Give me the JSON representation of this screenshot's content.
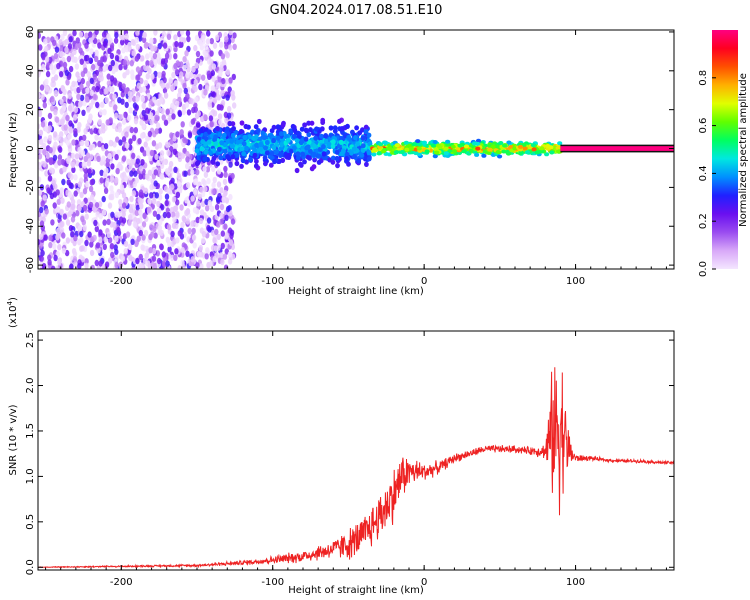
{
  "title": "GN04.2024.017.08.51.E10",
  "chart_data": [
    {
      "type": "heatmap",
      "xlabel": "Height of straight line (km)",
      "ylabel": "Frequency (Hz)",
      "xlim": [
        -255,
        165
      ],
      "ylim": [
        -62,
        61
      ],
      "x_ticks": [
        -200,
        -100,
        0,
        100
      ],
      "x_tick_labels": [
        "-200",
        "-100",
        "0",
        "100"
      ],
      "y_ticks": [
        -60,
        -40,
        -20,
        0,
        20,
        40,
        60
      ],
      "y_tick_labels": [
        "-60",
        "-40",
        "-20",
        "0",
        "20",
        "40",
        "60"
      ],
      "colorbar": {
        "label": "Normalized spectral amplitude",
        "range": [
          0,
          1
        ],
        "ticks": [
          0.0,
          0.2,
          0.4,
          0.6,
          0.8
        ],
        "tick_labels": [
          "0.0",
          "0.2",
          "0.4",
          "0.6",
          "0.8"
        ],
        "colormap": [
          "#f4e6ff",
          "#d8a8f8",
          "#9a4cf0",
          "#6a10f0",
          "#2020ff",
          "#0090ff",
          "#00e8e0",
          "#00ff60",
          "#60ff00",
          "#e0ff00",
          "#ffb000",
          "#ff5000",
          "#ff0020",
          "#ff0080"
        ]
      },
      "regions": [
        {
          "x": [
            -255,
            -125
          ],
          "freq": [
            -62,
            60
          ],
          "amplitude": [
            0.0,
            0.2
          ],
          "pattern": "noise"
        },
        {
          "x": [
            -150,
            -35
          ],
          "freq": [
            -10,
            14
          ],
          "amplitude": [
            0.15,
            0.5
          ],
          "pattern": "band"
        },
        {
          "x": [
            -35,
            90
          ],
          "freq": [
            -4,
            4
          ],
          "amplitude": [
            0.2,
            0.9
          ],
          "pattern": "narrow band"
        },
        {
          "x": [
            90,
            165
          ],
          "freq": [
            -2,
            2
          ],
          "amplitude": [
            0.9,
            1.0
          ],
          "pattern": "constant line"
        }
      ]
    },
    {
      "type": "line",
      "xlabel": "Height of straight line (km)",
      "ylabel": "SNR (10 * v/v)",
      "y_scale_note": "(x10",
      "y_scale_exp": "4",
      "y_scale_close": ")",
      "xlim": [
        -255,
        165
      ],
      "ylim": [
        -0.03,
        2.6
      ],
      "x_ticks": [
        -200,
        -100,
        0,
        100
      ],
      "x_tick_labels": [
        "-200",
        "-100",
        "0",
        "100"
      ],
      "y_ticks": [
        0.0,
        0.5,
        1.0,
        1.5,
        2.0,
        2.5
      ],
      "y_tick_labels": [
        "0.0",
        "0.5",
        "1.0",
        "1.5",
        "2.0",
        "2.5"
      ],
      "line_color": "#ee2222",
      "series": [
        {
          "x": [
            -255,
            -200,
            -150,
            -120,
            -100,
            -80,
            -60,
            -50,
            -40,
            -30,
            -20,
            -15,
            -10,
            0,
            10,
            20,
            30,
            40,
            50,
            60,
            70,
            80,
            85,
            90,
            95,
            100,
            110,
            120,
            130,
            140,
            150,
            160,
            165
          ],
          "y": [
            0.0,
            0.01,
            0.02,
            0.05,
            0.08,
            0.12,
            0.2,
            0.25,
            0.35,
            0.55,
            0.8,
            1.0,
            1.05,
            1.05,
            1.1,
            1.2,
            1.25,
            1.3,
            1.3,
            1.3,
            1.28,
            1.28,
            1.5,
            1.6,
            1.3,
            1.2,
            1.2,
            1.18,
            1.17,
            1.17,
            1.16,
            1.15,
            1.15
          ],
          "noise_amplitude": [
            0.005,
            0.01,
            0.015,
            0.03,
            0.05,
            0.08,
            0.12,
            0.2,
            0.25,
            0.3,
            0.35,
            0.3,
            0.2,
            0.12,
            0.08,
            0.06,
            0.05,
            0.05,
            0.05,
            0.05,
            0.05,
            0.1,
            0.9,
            1.1,
            0.3,
            0.05,
            0.03,
            0.02,
            0.02,
            0.02,
            0.02,
            0.02,
            0.02
          ]
        }
      ]
    }
  ]
}
